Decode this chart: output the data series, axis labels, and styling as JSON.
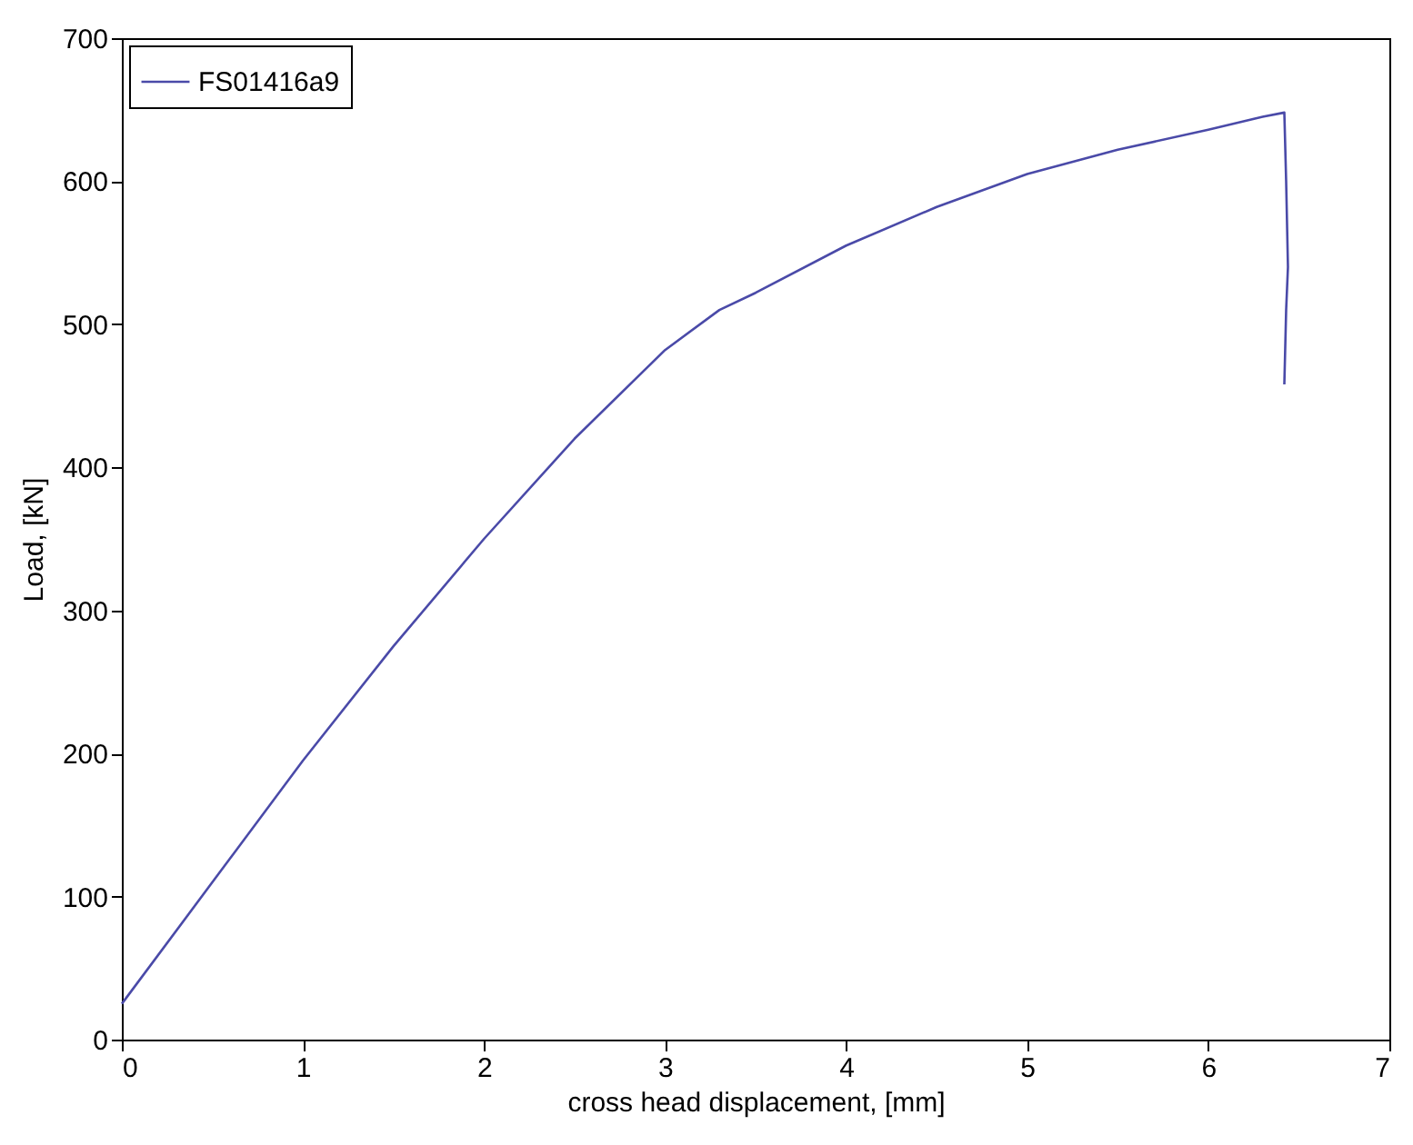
{
  "chart_data": {
    "type": "line",
    "xlabel": "cross head displacement, [mm]",
    "ylabel": "Load, [kN]",
    "xlim": [
      0,
      7
    ],
    "xticks": [
      0,
      1,
      2,
      3,
      4,
      5,
      6,
      7
    ],
    "ylim": [
      0,
      700
    ],
    "yticks": [
      0,
      100,
      200,
      300,
      400,
      500,
      600,
      700
    ],
    "legend": "top left",
    "grid": false,
    "series": [
      {
        "name": "FS01416a9",
        "color": "#4a4aa8",
        "x": [
          0,
          0.5,
          1,
          1.5,
          2,
          2.5,
          3,
          3.3,
          3.5,
          4,
          4.5,
          5,
          5.5,
          6,
          6.3,
          6.42,
          6.43,
          6.44,
          6.43,
          6.42
        ],
        "values": [
          25,
          110,
          195,
          275,
          350,
          420,
          482,
          510,
          522,
          555,
          582,
          605,
          622,
          636,
          645,
          648,
          600,
          540,
          510,
          458
        ]
      }
    ]
  }
}
